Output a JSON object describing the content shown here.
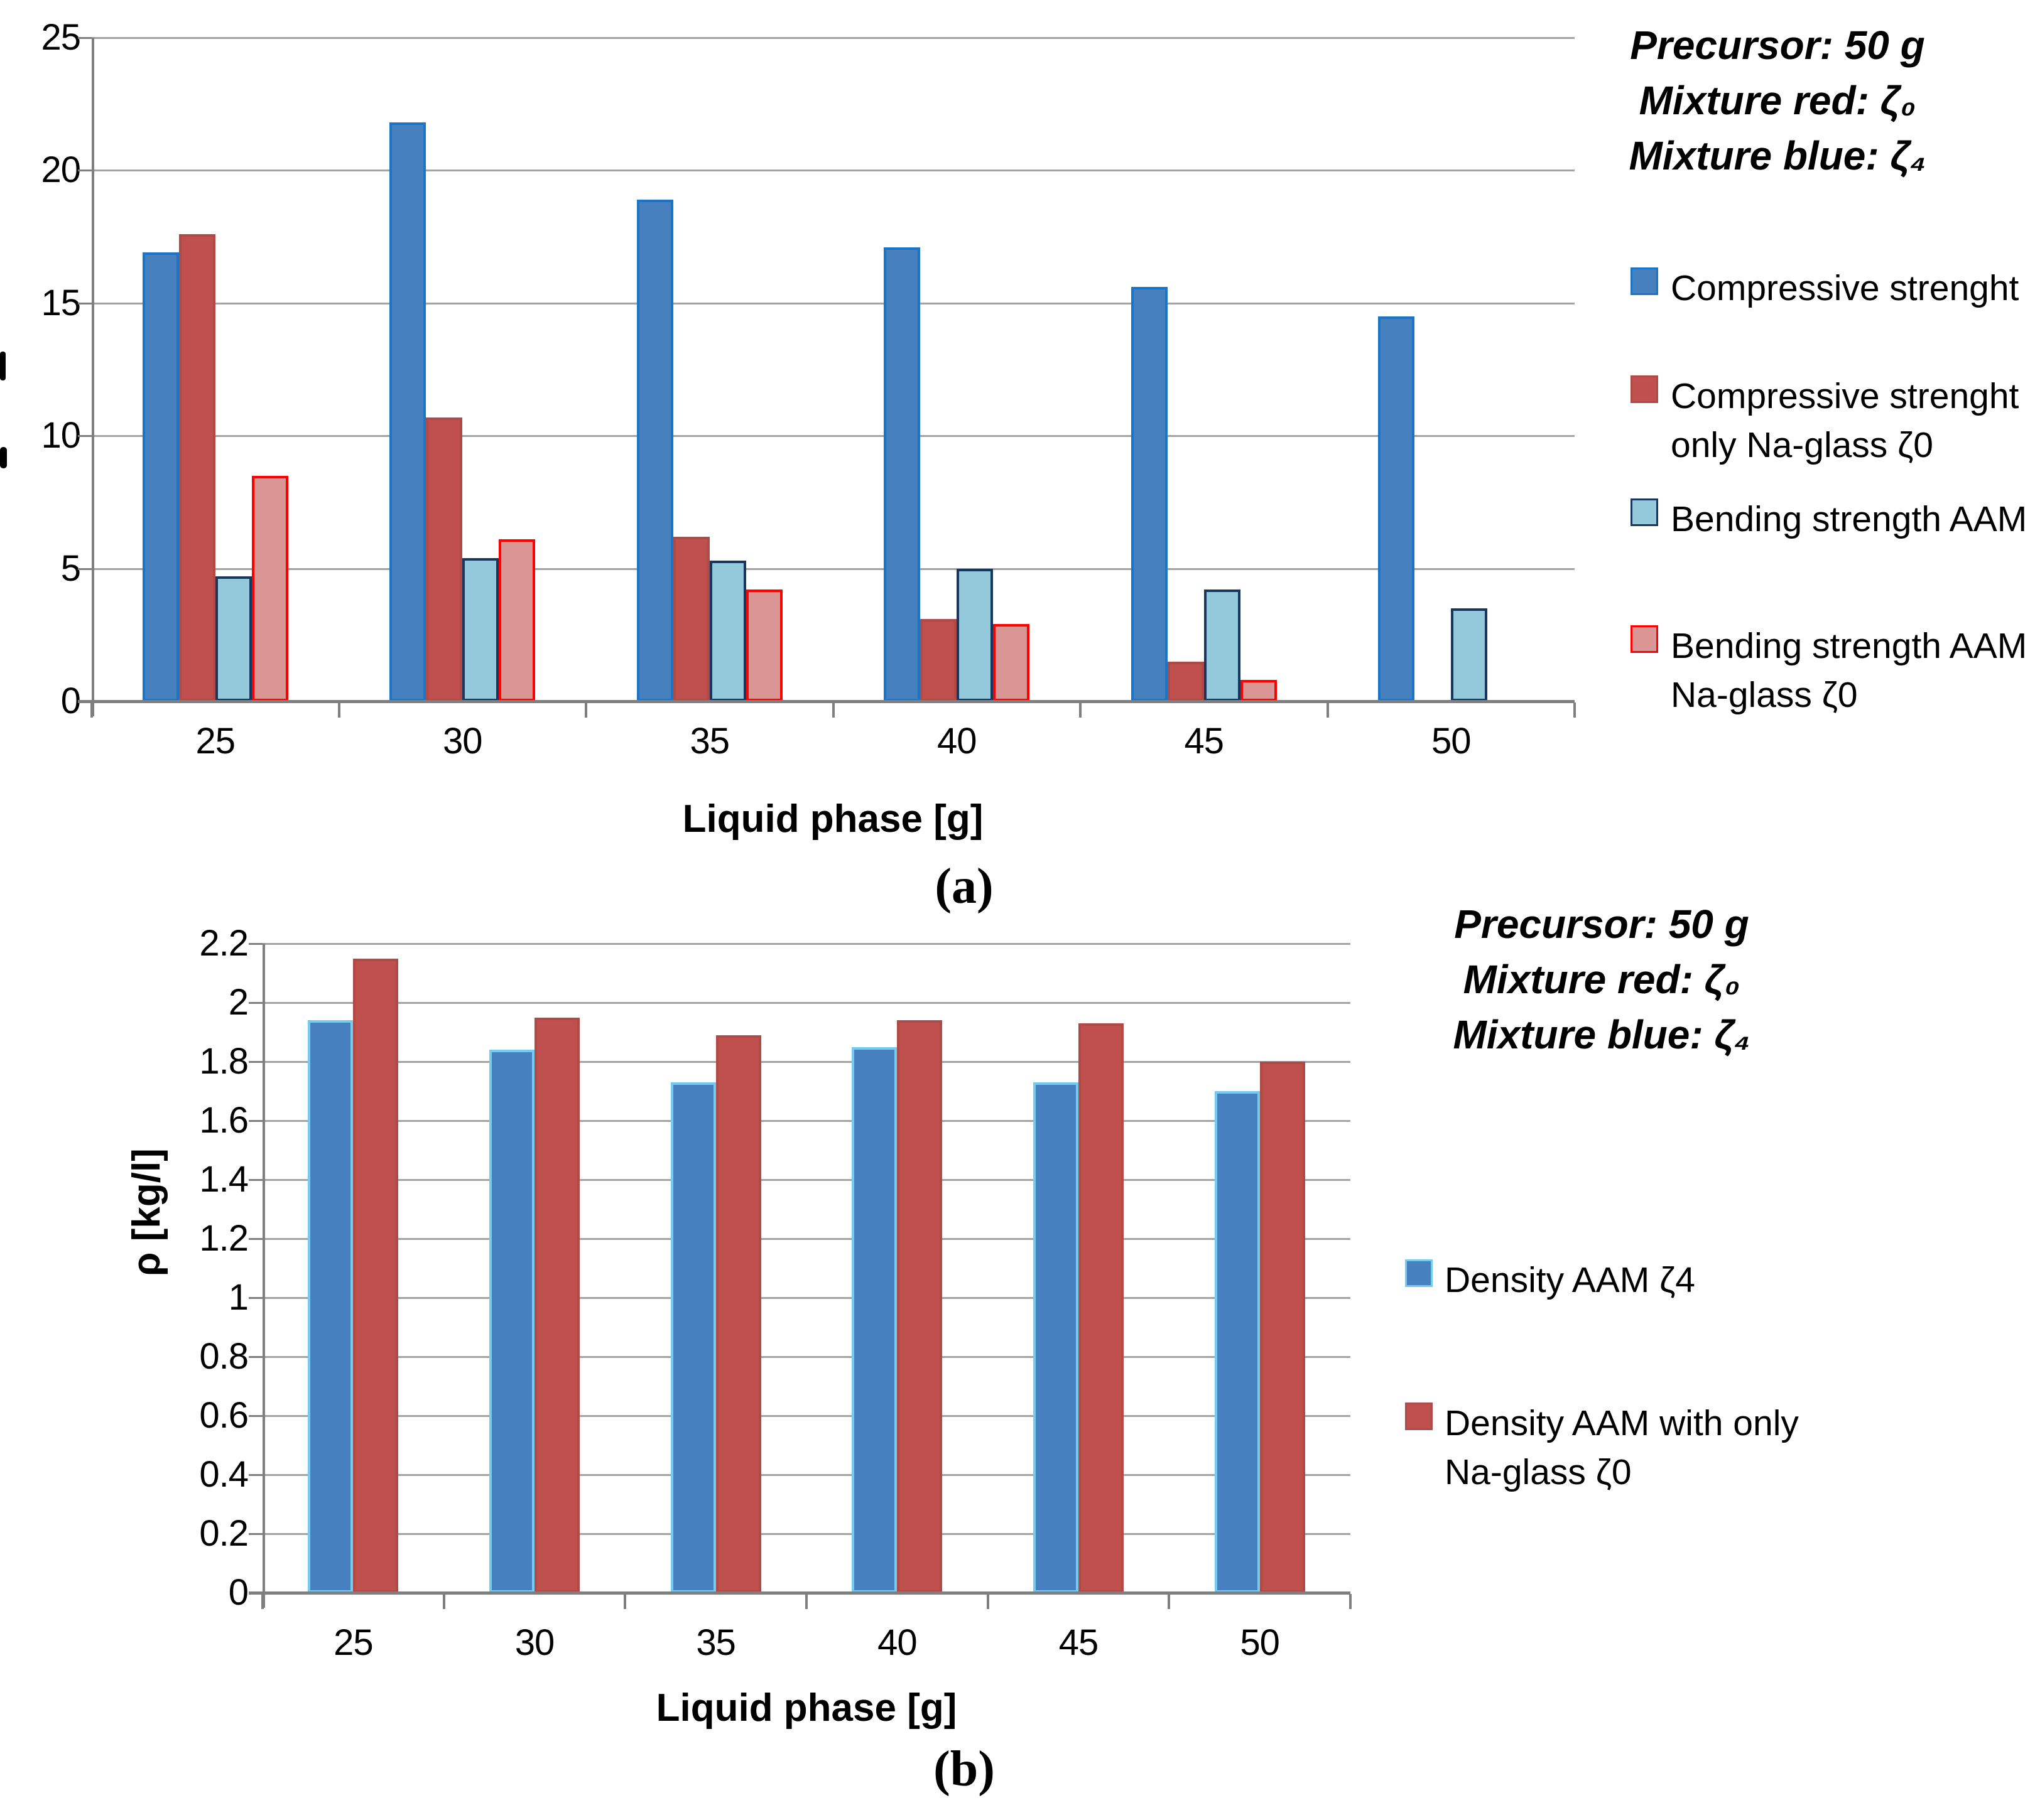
{
  "figure": {
    "panel_a_label": "(a)",
    "panel_b_label": "(b)"
  },
  "annotation": {
    "lines": [
      "Precursor: 50 g",
      "Mixture red: ζ₀",
      "Mixture blue: ζ₄"
    ]
  },
  "chart_data": [
    {
      "id": "a",
      "type": "bar",
      "title": "",
      "categories": [
        "25",
        "30",
        "35",
        "40",
        "45",
        "50"
      ],
      "xlabel": "Liquid phase [g]",
      "ylabel": "",
      "ylim": [
        0,
        25
      ],
      "yticks": [
        0,
        5,
        10,
        15,
        20,
        25
      ],
      "ytick_labels": [
        "0",
        "5",
        "10",
        "15",
        "20",
        "25"
      ],
      "grid": true,
      "legend_position": "right",
      "series": [
        {
          "name": "Compressive strenght",
          "name_lines": [
            "Compressive strenght"
          ],
          "fill": "#4680BE",
          "border": "#1B75C6",
          "values": [
            16.9,
            21.8,
            18.9,
            17.1,
            15.6,
            14.5
          ]
        },
        {
          "name": "Compressive strenght only Na-glass ζ0",
          "name_lines": [
            "Compressive strenght",
            "only Na-glass  ζ0"
          ],
          "fill": "#C0504D",
          "border": "#B04A47",
          "values": [
            17.6,
            10.7,
            6.2,
            3.1,
            1.5,
            0
          ]
        },
        {
          "name": "Bending strength AAM",
          "name_lines": [
            "Bending strength AAM"
          ],
          "fill": "#94C9DC",
          "border": "#17375E",
          "values": [
            4.7,
            5.4,
            5.3,
            5.0,
            4.2,
            3.5
          ]
        },
        {
          "name": "Bending strength AAM Na-glass ζ0",
          "name_lines": [
            "Bending strength AAM",
            "Na-glass  ζ0"
          ],
          "fill": "#D99695",
          "border": "#FF0000",
          "values": [
            8.5,
            6.1,
            4.2,
            2.9,
            0.8,
            0
          ]
        }
      ]
    },
    {
      "id": "b",
      "type": "bar",
      "title": "",
      "categories": [
        "25",
        "30",
        "35",
        "40",
        "45",
        "50"
      ],
      "xlabel": "Liquid phase [g]",
      "ylabel": "ρ [kg/l]",
      "ylim": [
        0,
        2.2
      ],
      "yticks": [
        0,
        0.2,
        0.4,
        0.6,
        0.8,
        1,
        1.2,
        1.4,
        1.6,
        1.8,
        2,
        2.2
      ],
      "ytick_labels": [
        "0",
        "0.2",
        "0.4",
        "0.6",
        "0.8",
        "1",
        "1.2",
        "1.4",
        "1.6",
        "1.8",
        "2",
        "2.2"
      ],
      "grid": true,
      "legend_position": "right",
      "series": [
        {
          "name": "Density AAM  ζ4",
          "name_lines": [
            "Density AAM  ζ4"
          ],
          "fill": "#4680BE",
          "border": "#74CBEF",
          "values": [
            1.94,
            1.84,
            1.73,
            1.85,
            1.73,
            1.7
          ]
        },
        {
          "name": "Density AAM with only Na-glass ζ0",
          "name_lines": [
            "Density AAM with only",
            "Na-glass  ζ0"
          ],
          "fill": "#C0504D",
          "border": "#B04A47",
          "values": [
            2.15,
            1.95,
            1.89,
            1.94,
            1.93,
            1.8
          ]
        }
      ]
    }
  ],
  "colors": {
    "gridline": "#A3A3A3",
    "axis": "#7F7F7F",
    "background": "#FFFFFF",
    "text": "#000000",
    "blue_fill": "#4680BE",
    "red_fill": "#C0504D",
    "light_blue_fill": "#94C9DC",
    "pink_fill": "#D99695",
    "pink_border": "#FF0000",
    "navy_border": "#17375E"
  }
}
